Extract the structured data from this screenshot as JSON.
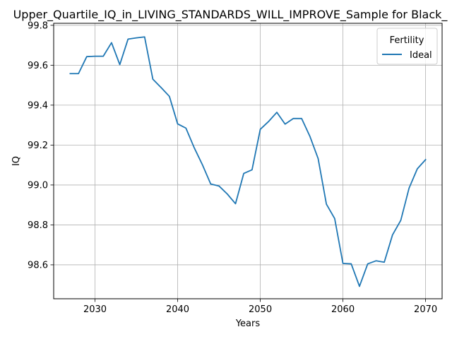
{
  "chart_data": {
    "type": "line",
    "title": "Upper_Quartile_IQ_in_LIVING_STANDARDS_WILL_IMPROVE_Sample for Black_",
    "xlabel": "Years",
    "ylabel": "IQ",
    "xlim": [
      2025,
      2072
    ],
    "ylim": [
      98.43,
      99.81
    ],
    "xticks": [
      2030,
      2040,
      2050,
      2060,
      2070
    ],
    "yticks": [
      98.6,
      98.8,
      99.0,
      99.2,
      99.4,
      99.6,
      99.8
    ],
    "ytick_labels": [
      "98.6",
      "98.8",
      "99.0",
      "99.2",
      "99.4",
      "99.6",
      "99.8"
    ],
    "grid": true,
    "legend": {
      "title": "Fertility",
      "placement": "top-right"
    },
    "series": [
      {
        "name": "Ideal",
        "color": "#1f77b4",
        "x": [
          2027,
          2028,
          2029,
          2030,
          2031,
          2032,
          2033,
          2034,
          2035,
          2036,
          2037,
          2038,
          2039,
          2040,
          2041,
          2042,
          2043,
          2044,
          2045,
          2046,
          2047,
          2048,
          2049,
          2050,
          2051,
          2052,
          2053,
          2054,
          2055,
          2056,
          2057,
          2058,
          2059,
          2060,
          2061,
          2062,
          2063,
          2064,
          2065,
          2066,
          2067,
          2068,
          2069,
          2070
        ],
        "y": [
          99.558,
          99.558,
          99.643,
          99.645,
          99.645,
          99.713,
          99.603,
          99.731,
          99.737,
          99.742,
          99.53,
          99.488,
          99.444,
          99.306,
          99.285,
          99.187,
          99.101,
          99.005,
          98.995,
          98.955,
          98.906,
          99.058,
          99.076,
          99.279,
          99.318,
          99.364,
          99.305,
          99.333,
          99.333,
          99.244,
          99.132,
          98.904,
          98.832,
          98.607,
          98.605,
          98.492,
          98.605,
          98.62,
          98.613,
          98.75,
          98.823,
          98.984,
          99.081,
          99.127
        ]
      }
    ]
  }
}
